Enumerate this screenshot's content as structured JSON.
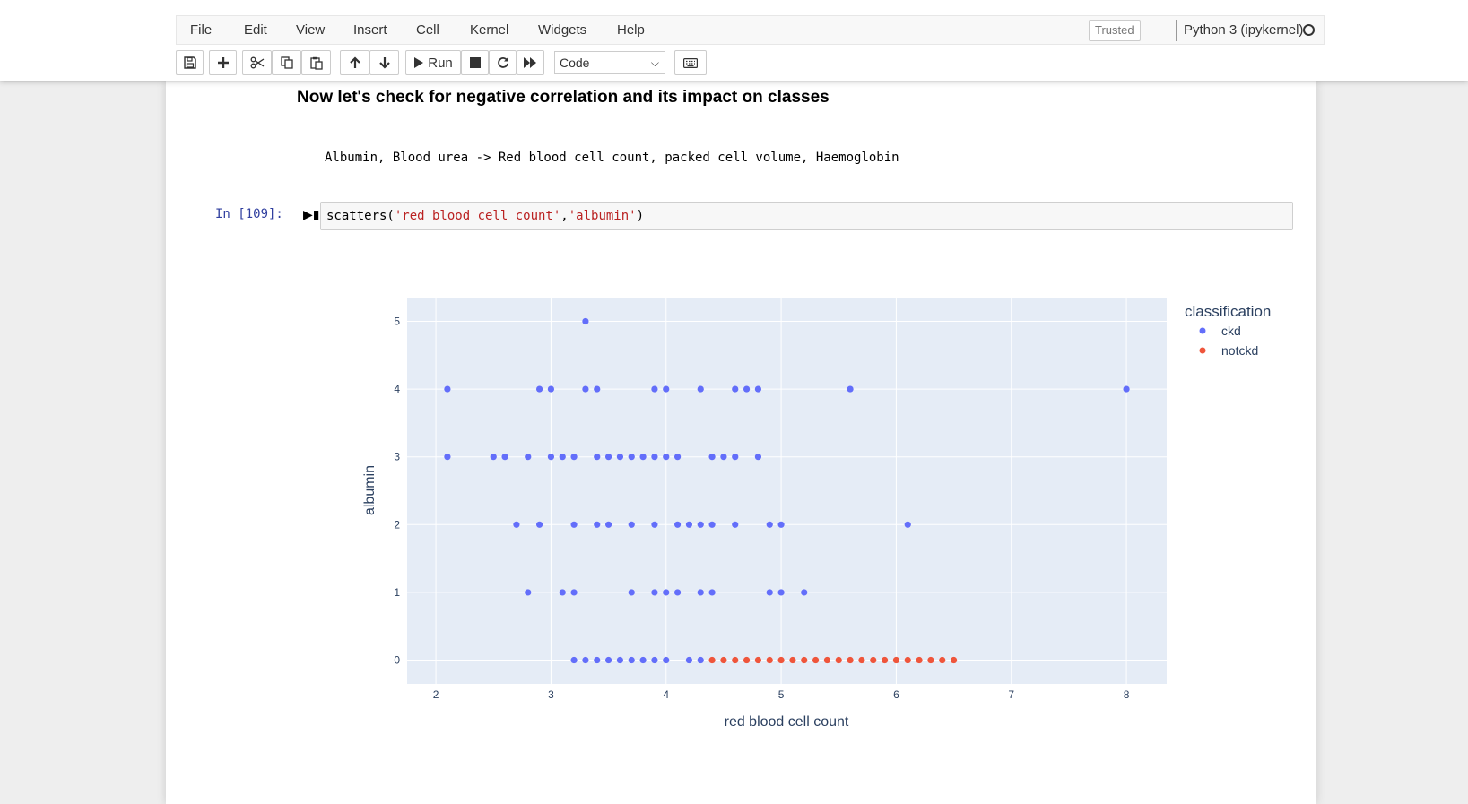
{
  "menubar": {
    "items": [
      "File",
      "Edit",
      "View",
      "Insert",
      "Cell",
      "Kernel",
      "Widgets",
      "Help"
    ],
    "trusted": "Trusted",
    "kernel": "Python 3 (ipykernel)"
  },
  "toolbar": {
    "run_label": "Run",
    "cell_type": "Code",
    "icons": [
      "save-icon",
      "plus-icon",
      "scissors-icon",
      "copy-icon",
      "paste-icon",
      "arrow-up-icon",
      "arrow-down-icon",
      "run-icon",
      "stop-icon",
      "restart-icon",
      "fast-forward-icon",
      "keyboard-icon"
    ]
  },
  "notebook": {
    "heading": "Now let's check for negative correlation and its impact on classes",
    "md_code": "Albumin, Blood urea -> Red blood cell count, packed cell volume, Haemoglobin",
    "prompt": "In [109]:",
    "code": {
      "fn": "scatters(",
      "arg1": "'red blood cell count'",
      "comma": ",",
      "arg2": "'albumin'",
      "close": ")"
    }
  },
  "chart_data": {
    "type": "scatter",
    "xlabel": "red blood cell count",
    "ylabel": "albumin",
    "xlim": [
      1.75,
      8.35
    ],
    "ylim": [
      -0.35,
      5.35
    ],
    "xticks": [
      2,
      3,
      4,
      5,
      6,
      7,
      8
    ],
    "yticks": [
      0,
      1,
      2,
      3,
      4,
      5
    ],
    "grid": true,
    "legend": {
      "title": "classification",
      "placement": "right"
    },
    "series": [
      {
        "name": "ckd",
        "color": "#636efa",
        "points": [
          [
            3.3,
            5
          ],
          [
            2.1,
            4
          ],
          [
            2.9,
            4
          ],
          [
            3.0,
            4
          ],
          [
            3.3,
            4
          ],
          [
            3.4,
            4
          ],
          [
            3.9,
            4
          ],
          [
            4.0,
            4
          ],
          [
            4.3,
            4
          ],
          [
            4.6,
            4
          ],
          [
            4.7,
            4
          ],
          [
            4.8,
            4
          ],
          [
            5.6,
            4
          ],
          [
            8.0,
            4
          ],
          [
            2.1,
            3
          ],
          [
            2.5,
            3
          ],
          [
            2.6,
            3
          ],
          [
            2.8,
            3
          ],
          [
            3.0,
            3
          ],
          [
            3.1,
            3
          ],
          [
            3.2,
            3
          ],
          [
            3.4,
            3
          ],
          [
            3.5,
            3
          ],
          [
            3.6,
            3
          ],
          [
            3.7,
            3
          ],
          [
            3.8,
            3
          ],
          [
            3.9,
            3
          ],
          [
            4.0,
            3
          ],
          [
            4.1,
            3
          ],
          [
            4.4,
            3
          ],
          [
            4.5,
            3
          ],
          [
            4.6,
            3
          ],
          [
            4.8,
            3
          ],
          [
            2.7,
            2
          ],
          [
            2.9,
            2
          ],
          [
            3.2,
            2
          ],
          [
            3.4,
            2
          ],
          [
            3.5,
            2
          ],
          [
            3.7,
            2
          ],
          [
            3.9,
            2
          ],
          [
            4.1,
            2
          ],
          [
            4.2,
            2
          ],
          [
            4.3,
            2
          ],
          [
            4.4,
            2
          ],
          [
            4.6,
            2
          ],
          [
            4.9,
            2
          ],
          [
            5.0,
            2
          ],
          [
            6.1,
            2
          ],
          [
            2.8,
            1
          ],
          [
            3.1,
            1
          ],
          [
            3.2,
            1
          ],
          [
            3.7,
            1
          ],
          [
            3.9,
            1
          ],
          [
            4.0,
            1
          ],
          [
            4.1,
            1
          ],
          [
            4.3,
            1
          ],
          [
            4.4,
            1
          ],
          [
            4.9,
            1
          ],
          [
            5.0,
            1
          ],
          [
            5.2,
            1
          ],
          [
            3.2,
            0
          ],
          [
            3.3,
            0
          ],
          [
            3.4,
            0
          ],
          [
            3.5,
            0
          ],
          [
            3.6,
            0
          ],
          [
            3.7,
            0
          ],
          [
            3.8,
            0
          ],
          [
            3.9,
            0
          ],
          [
            4.0,
            0
          ],
          [
            4.2,
            0
          ],
          [
            4.3,
            0
          ]
        ]
      },
      {
        "name": "notckd",
        "color": "#ef553b",
        "points": [
          [
            4.4,
            0
          ],
          [
            4.5,
            0
          ],
          [
            4.6,
            0
          ],
          [
            4.7,
            0
          ],
          [
            4.8,
            0
          ],
          [
            4.9,
            0
          ],
          [
            5.0,
            0
          ],
          [
            5.1,
            0
          ],
          [
            5.2,
            0
          ],
          [
            5.3,
            0
          ],
          [
            5.4,
            0
          ],
          [
            5.5,
            0
          ],
          [
            5.6,
            0
          ],
          [
            5.7,
            0
          ],
          [
            5.8,
            0
          ],
          [
            5.9,
            0
          ],
          [
            6.0,
            0
          ],
          [
            6.1,
            0
          ],
          [
            6.2,
            0
          ],
          [
            6.3,
            0
          ],
          [
            6.4,
            0
          ],
          [
            6.5,
            0
          ]
        ]
      }
    ]
  }
}
